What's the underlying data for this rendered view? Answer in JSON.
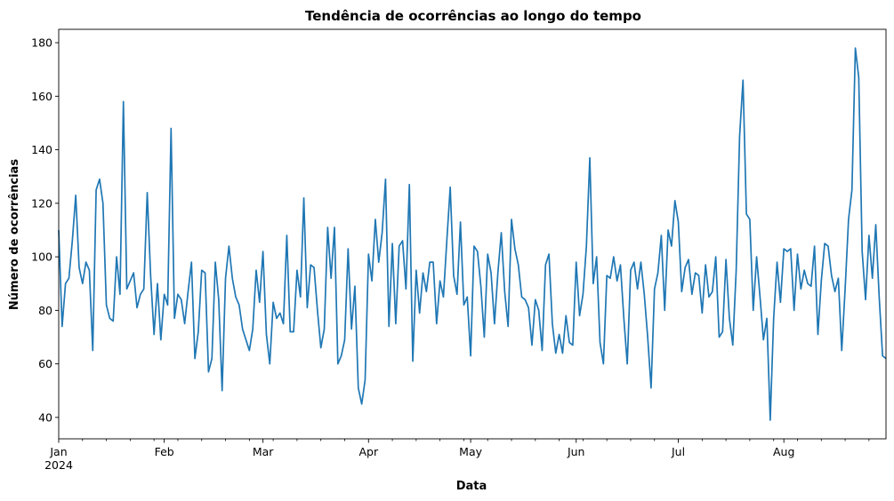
{
  "chart_data": {
    "type": "line",
    "title": "Tendência de ocorrências ao longo do tempo",
    "xlabel": "Data",
    "ylabel": "Número de ocorrências",
    "xlim": [
      "2024-01-01",
      "2024-08-31"
    ],
    "ylim": [
      32,
      185
    ],
    "yticks": [
      40,
      60,
      80,
      100,
      120,
      140,
      160,
      180
    ],
    "xticks": [
      {
        "date": "2024-01-01",
        "label": "Jan",
        "sublabel": "2024"
      },
      {
        "date": "2024-02-01",
        "label": "Feb"
      },
      {
        "date": "2024-03-01",
        "label": "Mar"
      },
      {
        "date": "2024-04-01",
        "label": "Apr"
      },
      {
        "date": "2024-05-01",
        "label": "May"
      },
      {
        "date": "2024-06-01",
        "label": "Jun"
      },
      {
        "date": "2024-07-01",
        "label": "Jul"
      },
      {
        "date": "2024-08-01",
        "label": "Aug"
      }
    ],
    "grid": false,
    "line_color": "#1f77b4",
    "series": [
      {
        "start": "2024-01-01",
        "frequency": "daily",
        "values": [
          110,
          74,
          90,
          92,
          106,
          123,
          96,
          90,
          98,
          95,
          65,
          125,
          129,
          120,
          82,
          77,
          76,
          100,
          86,
          158,
          88,
          91,
          94,
          81,
          86,
          88,
          124,
          93,
          71,
          90,
          69,
          86,
          82,
          148,
          77,
          86,
          84,
          75,
          87,
          98,
          62,
          72,
          95,
          94,
          57,
          62,
          98,
          84,
          50,
          92,
          104,
          92,
          85,
          82,
          73,
          69,
          65,
          73,
          95,
          83,
          102,
          71,
          60,
          83,
          77,
          79,
          75,
          108,
          72,
          72,
          95,
          85,
          122,
          81,
          97,
          96,
          80,
          66,
          73,
          111,
          92,
          111,
          60,
          63,
          69,
          103,
          73,
          89,
          51,
          45,
          54,
          101,
          91,
          114,
          98,
          109,
          129,
          74,
          105,
          75,
          104,
          106,
          88,
          127,
          61,
          95,
          79,
          94,
          87,
          98,
          98,
          75,
          91,
          85,
          106,
          126,
          93,
          86,
          113,
          82,
          85,
          63,
          104,
          102,
          89,
          70,
          101,
          94,
          75,
          94,
          109,
          87,
          74,
          114,
          103,
          97,
          85,
          84,
          81,
          67,
          84,
          80,
          65,
          97,
          101,
          75,
          64,
          71,
          64,
          78,
          68,
          67,
          98,
          78,
          86,
          104,
          137,
          90,
          100,
          68,
          60,
          93,
          92,
          100,
          91,
          97,
          77,
          60,
          95,
          98,
          88,
          98,
          86,
          70,
          51,
          88,
          94,
          108,
          80,
          110,
          104,
          121,
          113,
          87,
          96,
          99,
          86,
          94,
          93,
          79,
          97,
          85,
          87,
          100,
          70,
          72,
          99,
          77,
          67,
          95,
          145,
          166,
          116,
          114,
          80,
          100,
          85,
          69,
          77,
          39,
          77,
          98,
          83,
          103,
          102,
          103,
          80,
          101,
          88,
          95,
          90,
          89,
          104,
          71,
          91,
          105,
          104,
          93,
          87,
          92,
          65,
          88,
          114,
          125,
          178,
          167,
          102,
          84,
          108,
          92,
          112,
          85,
          63,
          62
        ]
      }
    ]
  }
}
